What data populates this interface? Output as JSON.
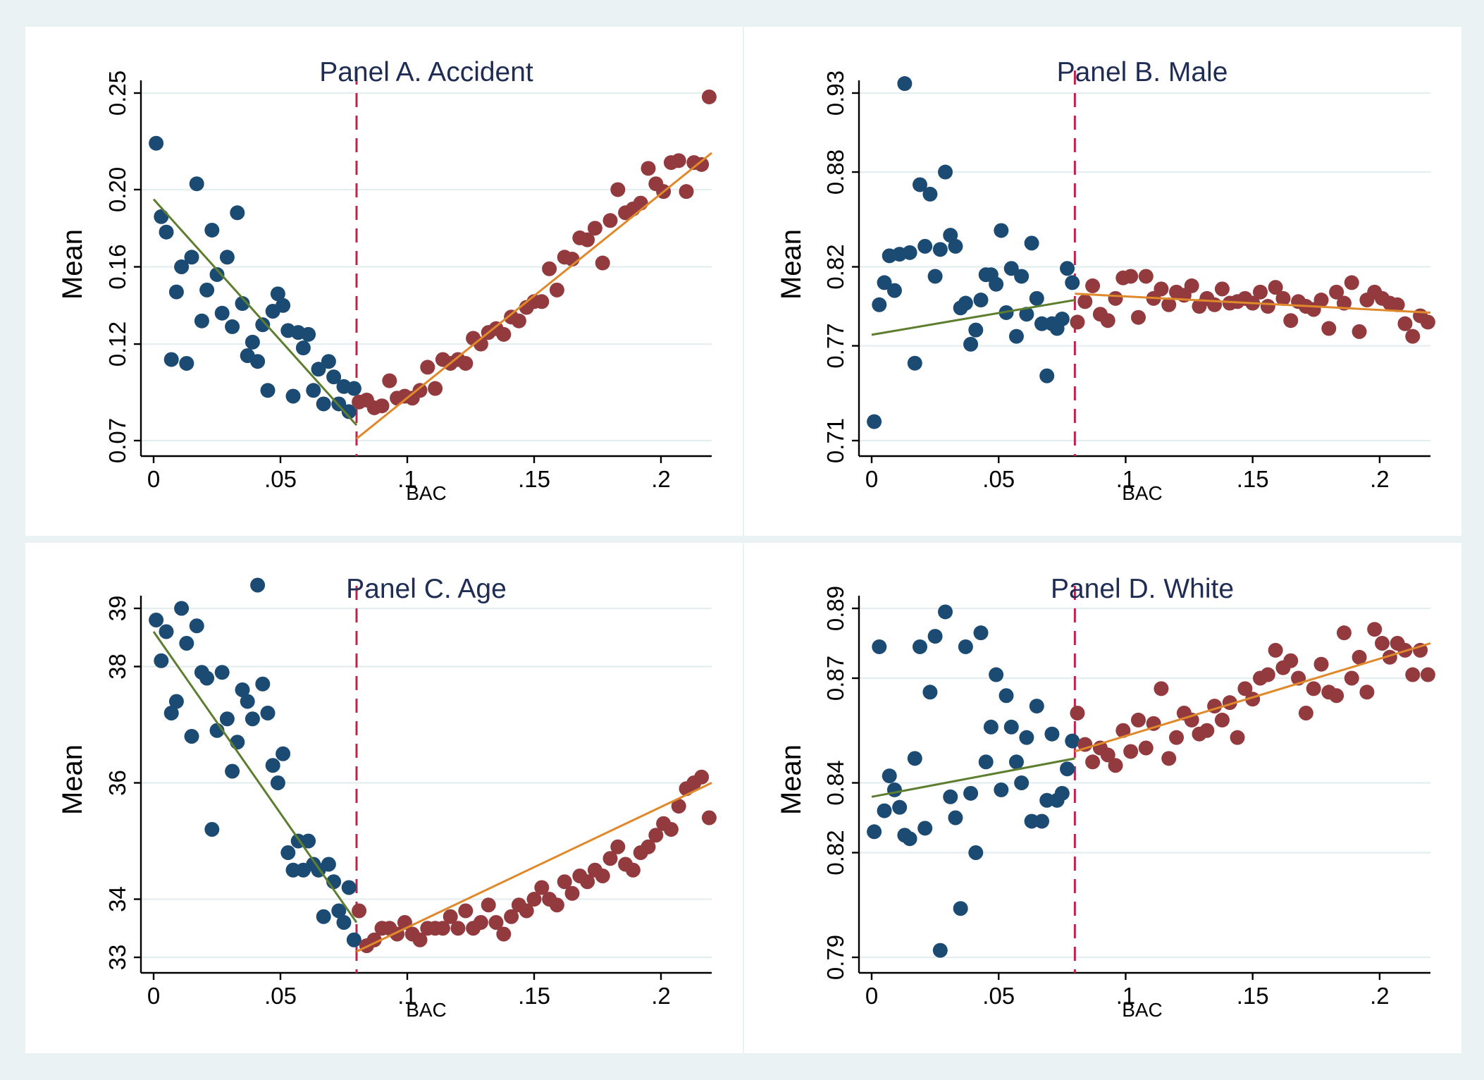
{
  "colors": {
    "below_points": "#1b4b72",
    "above_points": "#933a3e",
    "below_fit": "#5d7e2f",
    "above_fit": "#e0892b",
    "cutoff": "#c4204a",
    "title": "#1f2d55"
  },
  "chart_data": [
    {
      "type": "scatter",
      "title": "Panel A. Accident",
      "xlabel": "BAC",
      "ylabel": "Mean",
      "xlim": [
        0,
        0.22
      ],
      "ylim": [
        0.07,
        0.25
      ],
      "x_ticks": [
        0,
        0.05,
        0.1,
        0.15,
        0.2
      ],
      "x_tick_labels": [
        "0",
        ".05",
        ".1",
        ".15",
        ".2"
      ],
      "y_ticks": [
        0.07,
        0.12,
        0.16,
        0.2,
        0.25
      ],
      "y_tick_labels": [
        "0.07",
        "0.12",
        "0.16",
        "0.20",
        "0.25"
      ],
      "cutoff": 0.08,
      "grid": true,
      "series": [
        {
          "group": "below",
          "x": [
            0.001,
            0.003,
            0.005,
            0.007,
            0.009,
            0.011,
            0.013,
            0.015,
            0.017,
            0.019,
            0.021,
            0.023,
            0.025,
            0.027,
            0.029,
            0.031,
            0.033,
            0.035,
            0.037,
            0.039,
            0.041,
            0.043,
            0.045,
            0.047,
            0.049,
            0.051,
            0.053,
            0.055,
            0.057,
            0.059,
            0.061,
            0.063,
            0.065,
            0.067,
            0.069,
            0.071,
            0.073,
            0.075,
            0.077,
            0.079
          ],
          "y": [
            0.224,
            0.186,
            0.178,
            0.112,
            0.147,
            0.16,
            0.11,
            0.165,
            0.203,
            0.132,
            0.148,
            0.179,
            0.156,
            0.136,
            0.165,
            0.129,
            0.188,
            0.141,
            0.114,
            0.121,
            0.111,
            0.13,
            0.096,
            0.137,
            0.146,
            0.14,
            0.127,
            0.093,
            0.126,
            0.118,
            0.125,
            0.096,
            0.107,
            0.089,
            0.111,
            0.103,
            0.089,
            0.098,
            0.085,
            0.097
          ]
        },
        {
          "group": "above",
          "x": [
            0.081,
            0.084,
            0.087,
            0.09,
            0.093,
            0.096,
            0.099,
            0.102,
            0.105,
            0.108,
            0.111,
            0.114,
            0.117,
            0.12,
            0.123,
            0.126,
            0.129,
            0.132,
            0.135,
            0.138,
            0.141,
            0.144,
            0.147,
            0.15,
            0.153,
            0.156,
            0.159,
            0.162,
            0.165,
            0.168,
            0.171,
            0.174,
            0.177,
            0.18,
            0.183,
            0.186,
            0.189,
            0.192,
            0.195,
            0.198,
            0.201,
            0.204,
            0.207,
            0.21,
            0.213,
            0.216,
            0.219
          ],
          "y": [
            0.09,
            0.091,
            0.087,
            0.088,
            0.101,
            0.092,
            0.093,
            0.092,
            0.096,
            0.108,
            0.097,
            0.112,
            0.11,
            0.112,
            0.11,
            0.123,
            0.12,
            0.126,
            0.128,
            0.125,
            0.134,
            0.132,
            0.139,
            0.142,
            0.142,
            0.159,
            0.148,
            0.165,
            0.164,
            0.175,
            0.174,
            0.18,
            0.162,
            0.184,
            0.2,
            0.188,
            0.19,
            0.193,
            0.211,
            0.203,
            0.199,
            0.214,
            0.215,
            0.199,
            0.214,
            0.213,
            0.248
          ]
        }
      ],
      "fit_lines": [
        {
          "group": "below",
          "x": [
            0,
            0.08
          ],
          "y": [
            0.195,
            0.078
          ]
        },
        {
          "group": "above",
          "x": [
            0.08,
            0.22
          ],
          "y": [
            0.071,
            0.219
          ]
        }
      ]
    },
    {
      "type": "scatter",
      "title": "Panel B. Male",
      "xlabel": "BAC",
      "ylabel": "Mean",
      "xlim": [
        0,
        0.22
      ],
      "ylim": [
        0.71,
        0.93
      ],
      "x_ticks": [
        0,
        0.05,
        0.1,
        0.15,
        0.2
      ],
      "x_tick_labels": [
        "0",
        ".05",
        ".1",
        ".15",
        ".2"
      ],
      "y_ticks": [
        0.71,
        0.77,
        0.82,
        0.88,
        0.93
      ],
      "y_tick_labels": [
        "0.71",
        "0.77",
        "0.82",
        "0.88",
        "0.93"
      ],
      "cutoff": 0.08,
      "grid": true,
      "series": [
        {
          "group": "below",
          "x": [
            0.001,
            0.003,
            0.005,
            0.007,
            0.009,
            0.011,
            0.013,
            0.015,
            0.017,
            0.019,
            0.021,
            0.023,
            0.025,
            0.027,
            0.029,
            0.031,
            0.033,
            0.035,
            0.037,
            0.039,
            0.041,
            0.043,
            0.045,
            0.047,
            0.049,
            0.051,
            0.053,
            0.055,
            0.057,
            0.059,
            0.061,
            0.063,
            0.065,
            0.067,
            0.069,
            0.071,
            0.073,
            0.075,
            0.077,
            0.079
          ],
          "y": [
            0.722,
            0.796,
            0.81,
            0.827,
            0.805,
            0.828,
            0.936,
            0.829,
            0.759,
            0.872,
            0.833,
            0.866,
            0.814,
            0.831,
            0.88,
            0.84,
            0.833,
            0.794,
            0.797,
            0.771,
            0.78,
            0.799,
            0.815,
            0.815,
            0.809,
            0.843,
            0.791,
            0.819,
            0.776,
            0.814,
            0.79,
            0.835,
            0.8,
            0.784,
            0.751,
            0.784,
            0.781,
            0.787,
            0.819,
            0.81
          ]
        },
        {
          "group": "above",
          "x": [
            0.081,
            0.084,
            0.087,
            0.09,
            0.093,
            0.096,
            0.099,
            0.102,
            0.105,
            0.108,
            0.111,
            0.114,
            0.117,
            0.12,
            0.123,
            0.126,
            0.129,
            0.132,
            0.135,
            0.138,
            0.141,
            0.144,
            0.147,
            0.15,
            0.153,
            0.156,
            0.159,
            0.162,
            0.165,
            0.168,
            0.171,
            0.174,
            0.177,
            0.18,
            0.183,
            0.186,
            0.189,
            0.192,
            0.195,
            0.198,
            0.201,
            0.204,
            0.207,
            0.21,
            0.213,
            0.216,
            0.219
          ],
          "y": [
            0.785,
            0.798,
            0.808,
            0.79,
            0.786,
            0.8,
            0.813,
            0.814,
            0.788,
            0.814,
            0.8,
            0.806,
            0.796,
            0.804,
            0.802,
            0.808,
            0.795,
            0.8,
            0.796,
            0.806,
            0.797,
            0.798,
            0.8,
            0.797,
            0.804,
            0.795,
            0.807,
            0.8,
            0.786,
            0.798,
            0.795,
            0.793,
            0.799,
            0.781,
            0.804,
            0.797,
            0.81,
            0.779,
            0.799,
            0.804,
            0.8,
            0.797,
            0.796,
            0.784,
            0.776,
            0.789,
            0.785
          ]
        }
      ],
      "fit_lines": [
        {
          "group": "below",
          "x": [
            0,
            0.08
          ],
          "y": [
            0.777,
            0.799
          ]
        },
        {
          "group": "above",
          "x": [
            0.08,
            0.22
          ],
          "y": [
            0.803,
            0.791
          ]
        }
      ]
    },
    {
      "type": "scatter",
      "title": "Panel C. Age",
      "xlabel": "BAC",
      "ylabel": "Mean",
      "xlim": [
        0,
        0.22
      ],
      "ylim": [
        33,
        39
      ],
      "x_ticks": [
        0,
        0.05,
        0.1,
        0.15,
        0.2
      ],
      "x_tick_labels": [
        "0",
        ".05",
        ".1",
        ".15",
        ".2"
      ],
      "y_ticks": [
        33,
        34,
        36,
        38,
        39
      ],
      "y_tick_labels": [
        "33",
        "34",
        "36",
        "38",
        "39"
      ],
      "cutoff": 0.08,
      "grid": true,
      "series": [
        {
          "group": "below",
          "x": [
            0.001,
            0.003,
            0.005,
            0.007,
            0.009,
            0.011,
            0.013,
            0.015,
            0.017,
            0.019,
            0.021,
            0.023,
            0.025,
            0.027,
            0.029,
            0.031,
            0.033,
            0.035,
            0.037,
            0.039,
            0.041,
            0.043,
            0.045,
            0.047,
            0.049,
            0.051,
            0.053,
            0.055,
            0.057,
            0.059,
            0.061,
            0.063,
            0.065,
            0.067,
            0.069,
            0.071,
            0.073,
            0.075,
            0.077,
            0.079
          ],
          "y": [
            38.8,
            38.1,
            38.6,
            37.2,
            37.4,
            39.0,
            38.4,
            36.8,
            38.7,
            37.9,
            37.8,
            35.2,
            36.9,
            37.9,
            37.1,
            36.2,
            36.7,
            37.6,
            37.4,
            37.1,
            39.4,
            37.7,
            37.2,
            36.3,
            36.0,
            36.5,
            34.8,
            34.5,
            35.0,
            34.5,
            35.0,
            34.6,
            34.5,
            33.7,
            34.6,
            34.3,
            33.8,
            33.6,
            34.2,
            33.3
          ]
        },
        {
          "group": "above",
          "x": [
            0.081,
            0.084,
            0.087,
            0.09,
            0.093,
            0.096,
            0.099,
            0.102,
            0.105,
            0.108,
            0.111,
            0.114,
            0.117,
            0.12,
            0.123,
            0.126,
            0.129,
            0.132,
            0.135,
            0.138,
            0.141,
            0.144,
            0.147,
            0.15,
            0.153,
            0.156,
            0.159,
            0.162,
            0.165,
            0.168,
            0.171,
            0.174,
            0.177,
            0.18,
            0.183,
            0.186,
            0.189,
            0.192,
            0.195,
            0.198,
            0.201,
            0.204,
            0.207,
            0.21,
            0.213,
            0.216,
            0.219
          ],
          "y": [
            33.8,
            33.2,
            33.3,
            33.5,
            33.5,
            33.4,
            33.6,
            33.4,
            33.3,
            33.5,
            33.5,
            33.5,
            33.7,
            33.5,
            33.8,
            33.5,
            33.6,
            33.9,
            33.6,
            33.4,
            33.7,
            33.9,
            33.8,
            34.0,
            34.2,
            34.0,
            33.9,
            34.3,
            34.1,
            34.4,
            34.3,
            34.5,
            34.4,
            34.7,
            34.9,
            34.6,
            34.5,
            34.8,
            34.9,
            35.1,
            35.3,
            35.2,
            35.6,
            35.9,
            36.0,
            36.1,
            35.4
          ]
        }
      ],
      "fit_lines": [
        {
          "group": "below",
          "x": [
            0,
            0.08
          ],
          "y": [
            38.6,
            33.6
          ]
        },
        {
          "group": "above",
          "x": [
            0.08,
            0.22
          ],
          "y": [
            33.1,
            36.0
          ]
        }
      ]
    },
    {
      "type": "scatter",
      "title": "Panel D. White",
      "xlabel": "BAC",
      "ylabel": "Mean",
      "xlim": [
        0,
        0.22
      ],
      "ylim": [
        0.79,
        0.89
      ],
      "x_ticks": [
        0,
        0.05,
        0.1,
        0.15,
        0.2
      ],
      "x_tick_labels": [
        "0",
        ".05",
        ".1",
        ".15",
        ".2"
      ],
      "y_ticks": [
        0.79,
        0.82,
        0.84,
        0.87,
        0.89
      ],
      "y_tick_labels": [
        "0.79",
        "0.82",
        "0.84",
        "0.87",
        "0.89"
      ],
      "cutoff": 0.08,
      "grid": true,
      "series": [
        {
          "group": "below",
          "x": [
            0.001,
            0.003,
            0.005,
            0.007,
            0.009,
            0.011,
            0.013,
            0.015,
            0.017,
            0.019,
            0.021,
            0.023,
            0.025,
            0.027,
            0.029,
            0.031,
            0.033,
            0.035,
            0.037,
            0.039,
            0.041,
            0.043,
            0.045,
            0.047,
            0.049,
            0.051,
            0.053,
            0.055,
            0.057,
            0.059,
            0.061,
            0.063,
            0.065,
            0.067,
            0.069,
            0.071,
            0.073,
            0.075,
            0.077,
            0.079
          ],
          "y": [
            0.826,
            0.879,
            0.832,
            0.842,
            0.838,
            0.833,
            0.825,
            0.824,
            0.847,
            0.879,
            0.827,
            0.866,
            0.882,
            0.792,
            0.889,
            0.836,
            0.83,
            0.804,
            0.879,
            0.837,
            0.82,
            0.883,
            0.846,
            0.856,
            0.871,
            0.838,
            0.865,
            0.856,
            0.846,
            0.84,
            0.853,
            0.829,
            0.862,
            0.829,
            0.835,
            0.854,
            0.835,
            0.837,
            0.844,
            0.852
          ]
        },
        {
          "group": "above",
          "x": [
            0.081,
            0.084,
            0.087,
            0.09,
            0.093,
            0.096,
            0.099,
            0.102,
            0.105,
            0.108,
            0.111,
            0.114,
            0.117,
            0.12,
            0.123,
            0.126,
            0.129,
            0.132,
            0.135,
            0.138,
            0.141,
            0.144,
            0.147,
            0.15,
            0.153,
            0.156,
            0.159,
            0.162,
            0.165,
            0.168,
            0.171,
            0.174,
            0.177,
            0.18,
            0.183,
            0.186,
            0.189,
            0.192,
            0.195,
            0.198,
            0.201,
            0.204,
            0.207,
            0.21,
            0.213,
            0.216,
            0.219
          ],
          "y": [
            0.86,
            0.851,
            0.846,
            0.85,
            0.848,
            0.845,
            0.855,
            0.849,
            0.858,
            0.85,
            0.857,
            0.867,
            0.847,
            0.853,
            0.86,
            0.858,
            0.854,
            0.855,
            0.862,
            0.858,
            0.863,
            0.853,
            0.867,
            0.864,
            0.87,
            0.871,
            0.878,
            0.873,
            0.875,
            0.87,
            0.86,
            0.867,
            0.874,
            0.866,
            0.865,
            0.883,
            0.87,
            0.876,
            0.866,
            0.884,
            0.88,
            0.876,
            0.88,
            0.878,
            0.871,
            0.878,
            0.871
          ]
        }
      ],
      "fit_lines": [
        {
          "group": "below",
          "x": [
            0,
            0.08
          ],
          "y": [
            0.836,
            0.847
          ]
        },
        {
          "group": "above",
          "x": [
            0.08,
            0.22
          ],
          "y": [
            0.849,
            0.88
          ]
        }
      ]
    }
  ]
}
